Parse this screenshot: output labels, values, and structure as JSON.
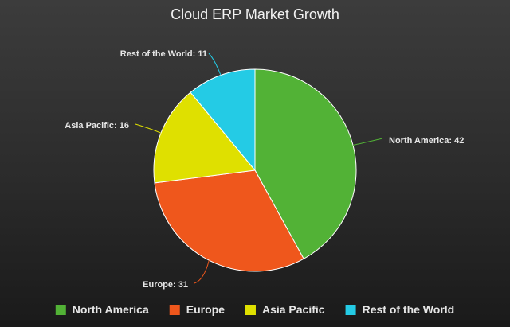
{
  "chart_data": {
    "type": "pie",
    "title": "Cloud ERP Market Growth",
    "legend_position": "bottom",
    "slices": [
      {
        "label": "North America",
        "value": 42,
        "color": "#52b236",
        "data_label": "North America: 42"
      },
      {
        "label": "Europe",
        "value": 31,
        "color": "#ef571c",
        "data_label": "Europe: 31"
      },
      {
        "label": "Asia Pacific",
        "value": 16,
        "color": "#dfe000",
        "data_label": "Asia Pacific: 16"
      },
      {
        "label": "Rest of the World",
        "value": 11,
        "color": "#24cbe5",
        "data_label": "Rest of the World: 11"
      }
    ]
  }
}
